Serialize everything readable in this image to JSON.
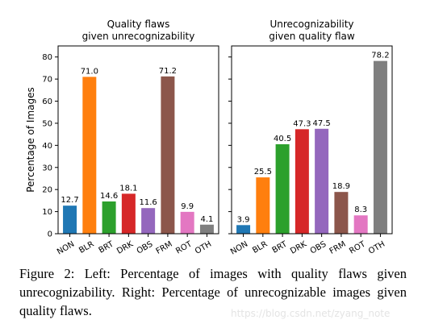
{
  "chart_data": [
    {
      "type": "bar",
      "title": [
        "Quality flaws",
        "given unrecognizability"
      ],
      "ylabel": "Percentage of Images",
      "ylim": [
        0,
        85
      ],
      "yticks": [
        0,
        10,
        20,
        30,
        40,
        50,
        60,
        70,
        80
      ],
      "show_ytick_labels": true,
      "categories": [
        "NON",
        "BLR",
        "BRT",
        "DRK",
        "OBS",
        "FRM",
        "ROT",
        "OTH"
      ],
      "values": [
        12.7,
        71.0,
        14.6,
        18.1,
        11.6,
        71.2,
        9.9,
        4.1
      ],
      "value_labels": [
        "12.7",
        "71.0",
        "14.6",
        "18.1",
        "11.6",
        "71.2",
        "9.9",
        "4.1"
      ],
      "colors": [
        "#1f77b4",
        "#ff7f0e",
        "#2ca02c",
        "#d62728",
        "#9467bd",
        "#8c564b",
        "#e377c2",
        "#7f7f7f"
      ],
      "grid": false
    },
    {
      "type": "bar",
      "title": [
        "Unrecognizability",
        "given quality flaw"
      ],
      "ylabel": "",
      "ylim": [
        0,
        85
      ],
      "yticks": [
        0,
        10,
        20,
        30,
        40,
        50,
        60,
        70,
        80
      ],
      "show_ytick_labels": false,
      "categories": [
        "NON",
        "BLR",
        "BRT",
        "DRK",
        "OBS",
        "FRM",
        "ROT",
        "OTH"
      ],
      "values": [
        3.9,
        25.5,
        40.5,
        47.3,
        47.5,
        18.9,
        8.3,
        78.2
      ],
      "value_labels": [
        "3.9",
        "25.5",
        "40.5",
        "47.3",
        "47.5",
        "18.9",
        "8.3",
        "78.2"
      ],
      "colors": [
        "#1f77b4",
        "#ff7f0e",
        "#2ca02c",
        "#d62728",
        "#9467bd",
        "#8c564b",
        "#e377c2",
        "#7f7f7f"
      ],
      "grid": false
    }
  ],
  "caption": "Figure 2: Left: Percentage of images with quality flaws given unrecognizability. Right: Percentage of unrecognizable images given quality flaws.",
  "watermark": "https://blog.csdn.net/zyang_note"
}
